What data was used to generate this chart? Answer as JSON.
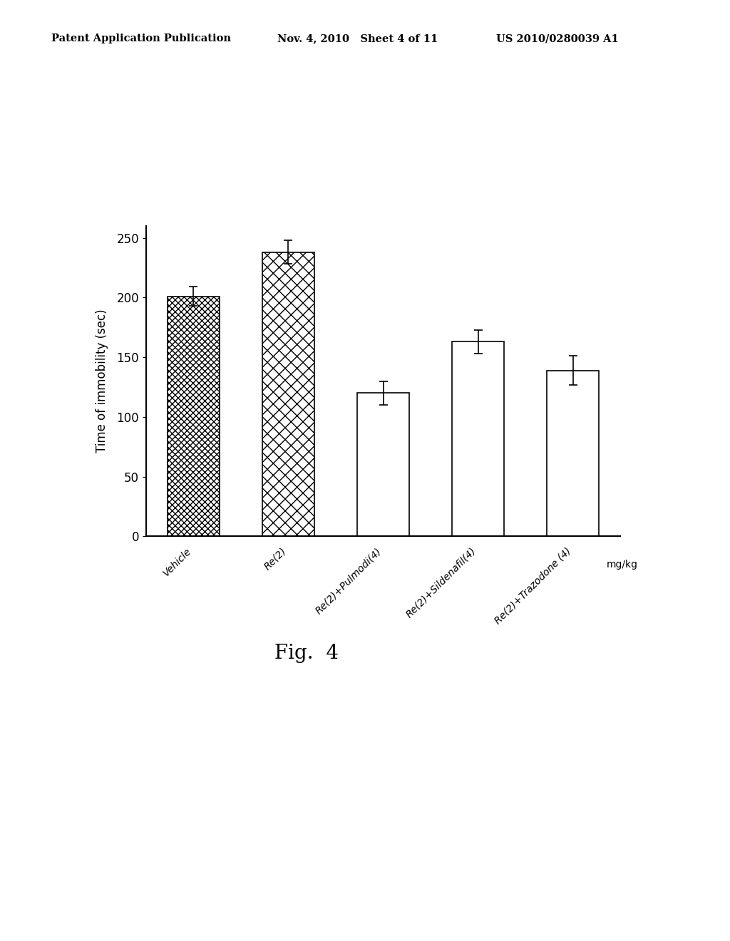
{
  "categories": [
    "Vehicle",
    "Re(2)",
    "Re(2)+Pulmodi(4)",
    "Re(2)+Sildenafil(4)",
    "Re(2)+Trazodone (4)"
  ],
  "values": [
    201,
    238,
    120,
    163,
    139
  ],
  "errors": [
    8,
    10,
    10,
    10,
    12
  ],
  "ylabel": "Time of immobility (sec)",
  "xlabel_right": "mg/kg",
  "yticks": [
    0,
    50,
    100,
    150,
    200,
    250
  ],
  "ylim": [
    0,
    260
  ],
  "fig_caption": "Fig.  4",
  "header_left": "Patent Application Publication",
  "header_mid": "Nov. 4, 2010   Sheet 4 of 11",
  "header_right": "US 2010/0280039 A1",
  "bar_edge_color": "#000000",
  "background_color": "#ffffff",
  "bar_width": 0.55
}
